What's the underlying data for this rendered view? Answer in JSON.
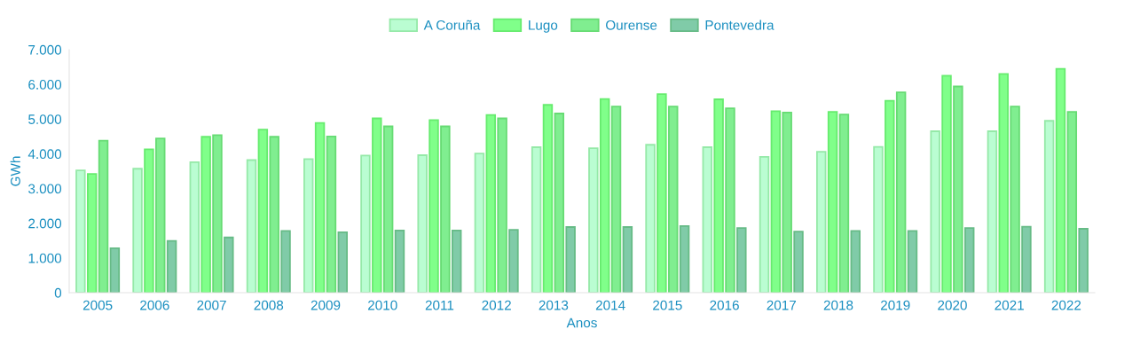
{
  "chart_data": {
    "type": "bar",
    "categories": [
      "2005",
      "2006",
      "2007",
      "2008",
      "2009",
      "2010",
      "2011",
      "2012",
      "2013",
      "2014",
      "2015",
      "2016",
      "2017",
      "2018",
      "2019",
      "2020",
      "2021",
      "2022"
    ],
    "series": [
      {
        "name": "A Coruña",
        "color": "#bafdd2",
        "values": [
          3520,
          3570,
          3760,
          3820,
          3850,
          3950,
          3960,
          4010,
          4190,
          4160,
          4260,
          4190,
          3910,
          4060,
          4200,
          4650,
          4650,
          4950
        ]
      },
      {
        "name": "Lugo",
        "color": "#80ff8a",
        "values": [
          3420,
          4130,
          4490,
          4700,
          4890,
          5020,
          4970,
          5120,
          5410,
          5580,
          5720,
          5570,
          5230,
          5210,
          5530,
          6250,
          6300,
          6450
        ]
      },
      {
        "name": "Ourense",
        "color": "#80ee90",
        "values": [
          4380,
          4440,
          4540,
          4490,
          4500,
          4790,
          4790,
          5020,
          5160,
          5360,
          5360,
          5310,
          5190,
          5130,
          5770,
          5940,
          5360,
          5210
        ]
      },
      {
        "name": "Pontevedra",
        "color": "#80cba8",
        "values": [
          1280,
          1490,
          1590,
          1780,
          1740,
          1790,
          1790,
          1810,
          1890,
          1890,
          1920,
          1860,
          1760,
          1780,
          1780,
          1860,
          1900,
          1840
        ]
      }
    ],
    "xlabel": "Anos",
    "ylabel": "GWh",
    "ylim": [
      0,
      7000
    ],
    "yticks": [
      0,
      {
        "value": 1000,
        "label": "1.000"
      },
      {
        "value": 2000,
        "label": "2.000"
      },
      {
        "value": 3000,
        "label": "3.000"
      },
      {
        "value": 4000,
        "label": "4.000"
      },
      {
        "value": 5000,
        "label": "5.000"
      },
      {
        "value": 6000,
        "label": "6.000"
      },
      {
        "value": 7000,
        "label": "7.000"
      }
    ],
    "legend": "top",
    "grid": false
  }
}
